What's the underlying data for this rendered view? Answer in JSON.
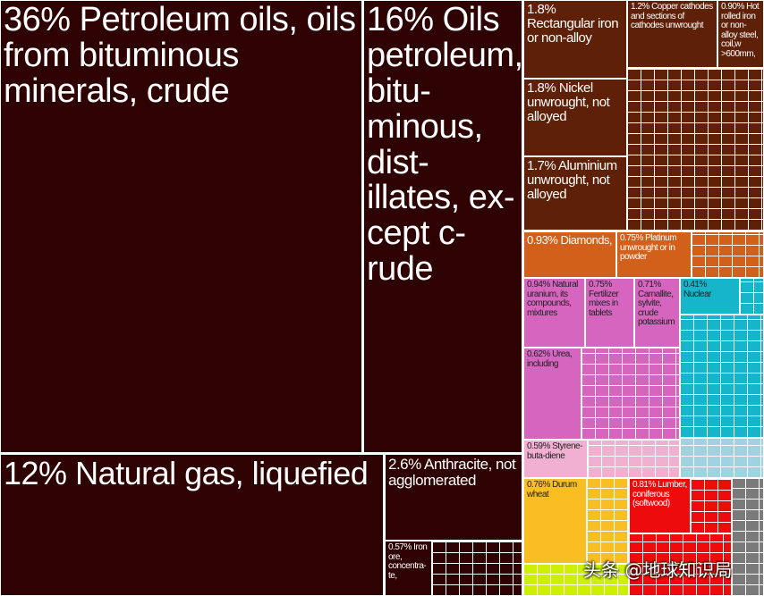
{
  "chart_data": {
    "type": "treemap",
    "colors": {
      "mineral_fuels": "#2e0202",
      "metals": "#5e2108",
      "precious": "#d2601a",
      "chemicals": "#d565bf",
      "nuclear": "#17b5c9",
      "plastics": "#f1b0d2",
      "food": "#f9be22",
      "wood": "#ee0b0b",
      "machinery_light": "#9fd3e0",
      "other": "#7a7a7a",
      "vegetable": "#cdf000"
    },
    "items": [
      {
        "pct": "36%",
        "name": "Petroleum oils, oils from bituminous minerals, crude",
        "group": "mineral_fuels"
      },
      {
        "pct": "16%",
        "name": "Oils petroleum, bitu-minous, dist-illates, ex-cept c-rude",
        "group": "mineral_fuels"
      },
      {
        "pct": "12%",
        "name": "Natural gas, liquefied",
        "group": "mineral_fuels"
      },
      {
        "pct": "2.6%",
        "name": "Anthracite, not agglomerated",
        "group": "mineral_fuels"
      },
      {
        "pct": "0.57%",
        "name": "Iron ore, concentra-te,",
        "group": "mineral_fuels"
      },
      {
        "pct": "1.8%",
        "name": "Rectangular iron or non-alloy",
        "group": "metals"
      },
      {
        "pct": "1.8%",
        "name": "Nickel unwrought, not alloyed",
        "group": "metals"
      },
      {
        "pct": "1.7%",
        "name": "Aluminium unwrought, not alloyed",
        "group": "metals"
      },
      {
        "pct": "1.2%",
        "name": "Copper cathodes and sections of cathodes unwrought",
        "group": "metals"
      },
      {
        "pct": "0.90%",
        "name": "Hot rolled iron or non-alloy steel, coil,w >600mm,",
        "group": "metals"
      },
      {
        "pct": "0.93%",
        "name": "Diamonds,",
        "group": "precious"
      },
      {
        "pct": "0.75%",
        "name": "Platinum unwrought or in powder",
        "group": "precious"
      },
      {
        "pct": "0.94%",
        "name": "Natural uranium, its compounds, mixtures",
        "group": "chemicals"
      },
      {
        "pct": "0.75%",
        "name": "Fertilizer mixes in tablets",
        "group": "chemicals"
      },
      {
        "pct": "0.71%",
        "name": "Carnallite, sylvite, crude potassium",
        "group": "chemicals"
      },
      {
        "pct": "0.41%",
        "name": "Nuclear",
        "group": "nuclear"
      },
      {
        "pct": "0.62%",
        "name": "Urea, including",
        "group": "chemicals"
      },
      {
        "pct": "0.59%",
        "name": "Styrene-buta-diene",
        "group": "plastics"
      },
      {
        "pct": "0.76%",
        "name": "Durum wheat",
        "group": "food"
      },
      {
        "pct": "0.81%",
        "name": "Lumber, coniferous (softwood)",
        "group": "wood"
      }
    ]
  },
  "watermark": "头条 @地球知识局"
}
